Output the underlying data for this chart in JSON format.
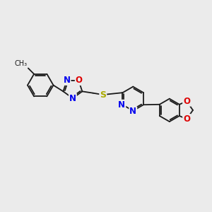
{
  "background_color": "#ebebeb",
  "bond_color": "#1a1a1a",
  "bond_width": 1.3,
  "atom_colors": {
    "N": "#0000ee",
    "O": "#dd0000",
    "S": "#aaaa00",
    "C": "#1a1a1a"
  },
  "font_size_atom": 8.5
}
